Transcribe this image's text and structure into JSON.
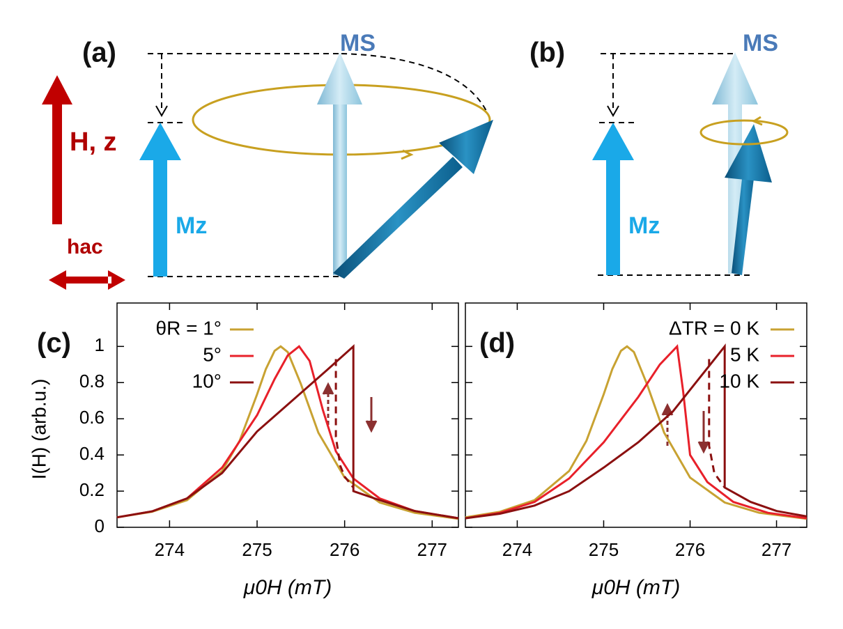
{
  "diagram": {
    "panel_a": "(a)",
    "panel_b": "(b)",
    "field": "H, z",
    "ac_field": "hac",
    "ms_a": "MS",
    "mz_a": "Mz",
    "ms_b": "MS",
    "mz_b": "Mz"
  },
  "chart_data": [
    {
      "type": "line",
      "label": "(c)",
      "xlabel": "μ0H (mT)",
      "ylabel": "I(H) (arb.u.)",
      "legend": "upper left",
      "xlim": [
        273.4,
        277.3
      ],
      "ylim": [
        0,
        1.24
      ],
      "xticks": [
        274,
        275,
        276,
        277
      ],
      "yticks": [
        0,
        0.2,
        0.4,
        0.6,
        0.8,
        1
      ],
      "ytick_labels": true,
      "series": [
        {
          "name": "θR = 1°",
          "color": "#c8a232",
          "x": [
            273.4,
            273.8,
            274.2,
            274.6,
            274.8,
            275.0,
            275.1,
            275.2,
            275.27,
            275.35,
            275.5,
            275.7,
            276.0,
            276.4,
            276.8,
            277.3
          ],
          "values": [
            0.055,
            0.086,
            0.15,
            0.311,
            0.478,
            0.735,
            0.875,
            0.976,
            1,
            0.969,
            0.793,
            0.523,
            0.275,
            0.137,
            0.08,
            0.047
          ]
        },
        {
          "name": "5°",
          "color": "#e8202a",
          "x": [
            273.4,
            273.8,
            274.2,
            274.6,
            275.0,
            275.2,
            275.35,
            275.48,
            275.6,
            275.75,
            275.9,
            276.1,
            276.4,
            276.8,
            277.3
          ],
          "values": [
            0.055,
            0.088,
            0.16,
            0.33,
            0.62,
            0.82,
            0.95,
            1,
            0.92,
            0.65,
            0.42,
            0.27,
            0.16,
            0.09,
            0.05
          ]
        },
        {
          "name": "10°",
          "color": "#8b1010",
          "x": [
            273.4,
            273.8,
            274.2,
            274.6,
            275.0,
            275.4,
            275.8,
            276.1,
            276.1,
            276.4,
            276.8,
            277.3
          ],
          "values": [
            0.055,
            0.088,
            0.16,
            0.3,
            0.53,
            0.7,
            0.87,
            1,
            0.2,
            0.15,
            0.09,
            0.05
          ]
        },
        {
          "color": "#8b1010",
          "dashed": true,
          "x": [
            275.9,
            275.9,
            275.95,
            276.0,
            276.1
          ],
          "values": [
            0.93,
            0.5,
            0.34,
            0.28,
            0.22
          ]
        }
      ]
    },
    {
      "type": "line",
      "label": "(d)",
      "xlabel": "μ0H (mT)",
      "legend": "upper right",
      "xlim": [
        273.4,
        277.35
      ],
      "ylim": [
        0,
        1.24
      ],
      "xticks": [
        274,
        275,
        276,
        277
      ],
      "yticks": [
        0,
        0.2,
        0.4,
        0.6,
        0.8,
        1
      ],
      "ytick_labels": false,
      "series": [
        {
          "name": "ΔTR = 0 K",
          "color": "#c8a232",
          "x": [
            273.4,
            273.8,
            274.2,
            274.6,
            274.8,
            275.0,
            275.1,
            275.2,
            275.27,
            275.35,
            275.5,
            275.7,
            276.0,
            276.4,
            276.8,
            277.35
          ],
          "values": [
            0.055,
            0.086,
            0.15,
            0.311,
            0.478,
            0.735,
            0.875,
            0.976,
            1,
            0.969,
            0.793,
            0.523,
            0.275,
            0.137,
            0.08,
            0.047
          ]
        },
        {
          "name": "5 K",
          "color": "#e8202a",
          "x": [
            273.4,
            273.8,
            274.2,
            274.6,
            275.0,
            275.4,
            275.65,
            275.85,
            275.92,
            276.0,
            276.2,
            276.5,
            276.9,
            277.35
          ],
          "values": [
            0.05,
            0.08,
            0.14,
            0.27,
            0.47,
            0.72,
            0.9,
            1,
            0.75,
            0.4,
            0.25,
            0.14,
            0.08,
            0.05
          ]
        },
        {
          "name": "10 K",
          "color": "#8b1010",
          "x": [
            273.4,
            273.8,
            274.2,
            274.6,
            275.0,
            275.4,
            275.8,
            276.1,
            276.4,
            276.4,
            276.7,
            277.0,
            277.35
          ],
          "values": [
            0.05,
            0.075,
            0.12,
            0.2,
            0.33,
            0.47,
            0.64,
            0.82,
            1,
            0.22,
            0.14,
            0.09,
            0.06
          ]
        },
        {
          "color": "#8b1010",
          "dashed": true,
          "x": [
            276.22,
            276.22,
            276.28,
            276.4
          ],
          "values": [
            0.93,
            0.45,
            0.3,
            0.22
          ]
        }
      ]
    }
  ]
}
